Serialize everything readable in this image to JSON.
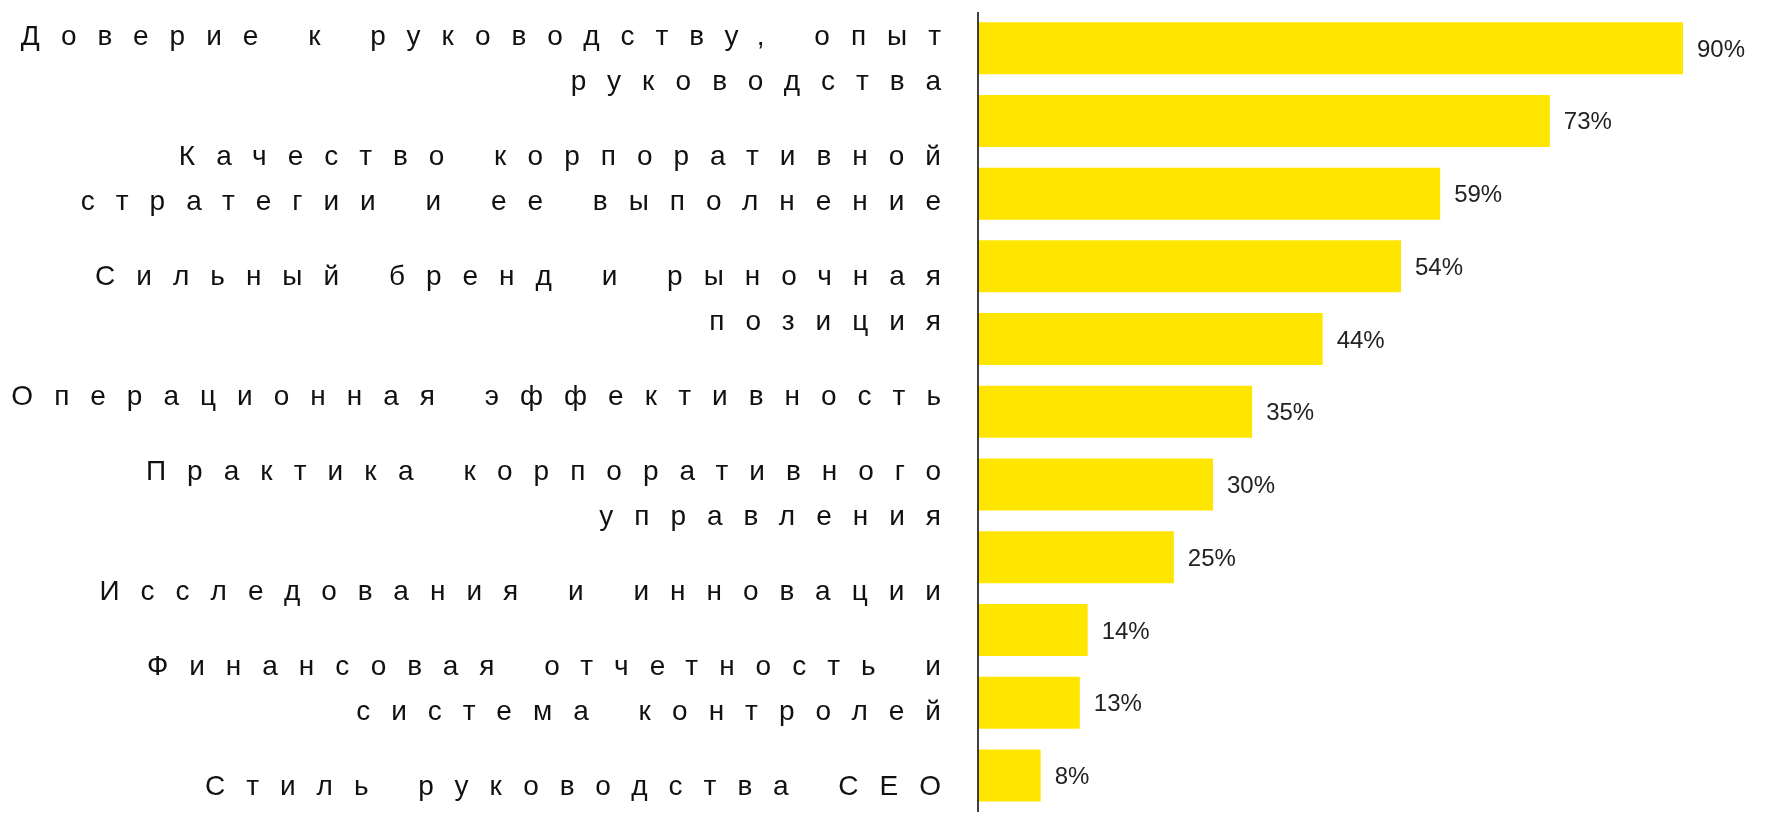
{
  "chart_data": {
    "type": "bar",
    "orientation": "horizontal",
    "color": "#ffe600",
    "grid": false,
    "legend": false,
    "categories": [
      "Доверие к руководству, опыт руководства",
      null,
      "Качество корпоративной стратегии и ее выполнение",
      "Сильный бренд и рыночная позиция",
      null,
      "Операционная эффективность",
      "Практика корпоративного управления",
      "Исследования и инновации",
      null,
      "Финансовая отчетность и система контролей",
      "Стиль руководства CEO"
    ],
    "values": [
      90,
      73,
      59,
      54,
      44,
      35,
      30,
      25,
      14,
      13,
      8
    ],
    "value_labels": [
      "90%",
      "73%",
      "59%",
      "54%",
      "44%",
      "35%",
      "30%",
      "25%",
      "14%",
      "13%",
      "8%"
    ],
    "tick_labels": "y"
  }
}
